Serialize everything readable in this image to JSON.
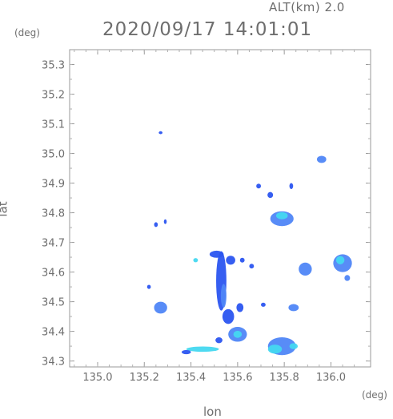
{
  "header": {
    "altitude_label": "ALT(km) 2.0",
    "timestamp": "2020/09/17 14:01:01",
    "lat_unit": "(deg)",
    "lon_unit": "(deg)"
  },
  "chart_data": {
    "type": "heatmap",
    "title": "2020/09/17 14:01:01",
    "subtitle": "ALT(km) 2.0",
    "xlabel": "lon",
    "ylabel": "lat",
    "xlim": [
      134.88,
      136.17
    ],
    "ylim": [
      34.28,
      35.35
    ],
    "x_ticks": [
      "135.0",
      "135.2",
      "135.4",
      "135.6",
      "135.8",
      "136.0"
    ],
    "y_ticks": [
      "34.3",
      "34.4",
      "34.5",
      "34.6",
      "34.7",
      "34.8",
      "34.9",
      "35.0",
      "35.1",
      "35.2",
      "35.3"
    ],
    "grid": false,
    "colors": {
      "low": "#2b55f0",
      "mid": "#4f86f7",
      "high": "#44d8f0",
      "peak": "#a8f2ea"
    },
    "echoes": [
      {
        "lon": 135.27,
        "lat": 35.07,
        "rx": 0.008,
        "ry": 0.005,
        "level": "low"
      },
      {
        "lon": 135.96,
        "lat": 34.98,
        "rx": 0.02,
        "ry": 0.012,
        "level": "mid"
      },
      {
        "lon": 135.79,
        "lat": 34.78,
        "rx": 0.05,
        "ry": 0.025,
        "level": "mid"
      },
      {
        "lon": 135.79,
        "lat": 34.79,
        "rx": 0.025,
        "ry": 0.012,
        "level": "high"
      },
      {
        "lon": 135.74,
        "lat": 34.86,
        "rx": 0.012,
        "ry": 0.01,
        "level": "low"
      },
      {
        "lon": 135.83,
        "lat": 34.89,
        "rx": 0.008,
        "ry": 0.01,
        "level": "low"
      },
      {
        "lon": 135.69,
        "lat": 34.89,
        "rx": 0.01,
        "ry": 0.008,
        "level": "low"
      },
      {
        "lon": 135.25,
        "lat": 34.76,
        "rx": 0.008,
        "ry": 0.008,
        "level": "low"
      },
      {
        "lon": 135.29,
        "lat": 34.77,
        "rx": 0.006,
        "ry": 0.008,
        "level": "low"
      },
      {
        "lon": 135.42,
        "lat": 34.64,
        "rx": 0.01,
        "ry": 0.007,
        "level": "high"
      },
      {
        "lon": 135.53,
        "lat": 34.57,
        "rx": 0.022,
        "ry": 0.1,
        "level": "low"
      },
      {
        "lon": 135.54,
        "lat": 34.52,
        "rx": 0.012,
        "ry": 0.04,
        "level": "mid"
      },
      {
        "lon": 135.51,
        "lat": 34.66,
        "rx": 0.03,
        "ry": 0.012,
        "level": "low"
      },
      {
        "lon": 135.57,
        "lat": 34.64,
        "rx": 0.02,
        "ry": 0.015,
        "level": "low"
      },
      {
        "lon": 135.62,
        "lat": 34.64,
        "rx": 0.01,
        "ry": 0.008,
        "level": "low"
      },
      {
        "lon": 135.56,
        "lat": 34.45,
        "rx": 0.025,
        "ry": 0.025,
        "level": "low"
      },
      {
        "lon": 135.61,
        "lat": 34.48,
        "rx": 0.015,
        "ry": 0.015,
        "level": "low"
      },
      {
        "lon": 135.66,
        "lat": 34.62,
        "rx": 0.01,
        "ry": 0.008,
        "level": "low"
      },
      {
        "lon": 135.71,
        "lat": 34.49,
        "rx": 0.01,
        "ry": 0.007,
        "level": "low"
      },
      {
        "lon": 135.22,
        "lat": 34.55,
        "rx": 0.008,
        "ry": 0.007,
        "level": "low"
      },
      {
        "lon": 135.27,
        "lat": 34.48,
        "rx": 0.028,
        "ry": 0.02,
        "level": "mid"
      },
      {
        "lon": 135.89,
        "lat": 34.61,
        "rx": 0.028,
        "ry": 0.022,
        "level": "mid"
      },
      {
        "lon": 136.05,
        "lat": 34.63,
        "rx": 0.04,
        "ry": 0.03,
        "level": "mid"
      },
      {
        "lon": 136.04,
        "lat": 34.64,
        "rx": 0.018,
        "ry": 0.014,
        "level": "high"
      },
      {
        "lon": 136.07,
        "lat": 34.58,
        "rx": 0.012,
        "ry": 0.01,
        "level": "mid"
      },
      {
        "lon": 135.84,
        "lat": 34.48,
        "rx": 0.022,
        "ry": 0.012,
        "level": "mid"
      },
      {
        "lon": 135.6,
        "lat": 34.39,
        "rx": 0.04,
        "ry": 0.025,
        "level": "mid"
      },
      {
        "lon": 135.6,
        "lat": 34.39,
        "rx": 0.018,
        "ry": 0.012,
        "level": "high"
      },
      {
        "lon": 135.52,
        "lat": 34.37,
        "rx": 0.015,
        "ry": 0.01,
        "level": "low"
      },
      {
        "lon": 135.79,
        "lat": 34.35,
        "rx": 0.06,
        "ry": 0.03,
        "level": "mid"
      },
      {
        "lon": 135.76,
        "lat": 34.34,
        "rx": 0.03,
        "ry": 0.015,
        "level": "high"
      },
      {
        "lon": 135.84,
        "lat": 34.35,
        "rx": 0.018,
        "ry": 0.01,
        "level": "high"
      },
      {
        "lon": 135.45,
        "lat": 34.34,
        "rx": 0.07,
        "ry": 0.009,
        "level": "high"
      },
      {
        "lon": 135.38,
        "lat": 34.33,
        "rx": 0.02,
        "ry": 0.007,
        "level": "low"
      }
    ]
  }
}
